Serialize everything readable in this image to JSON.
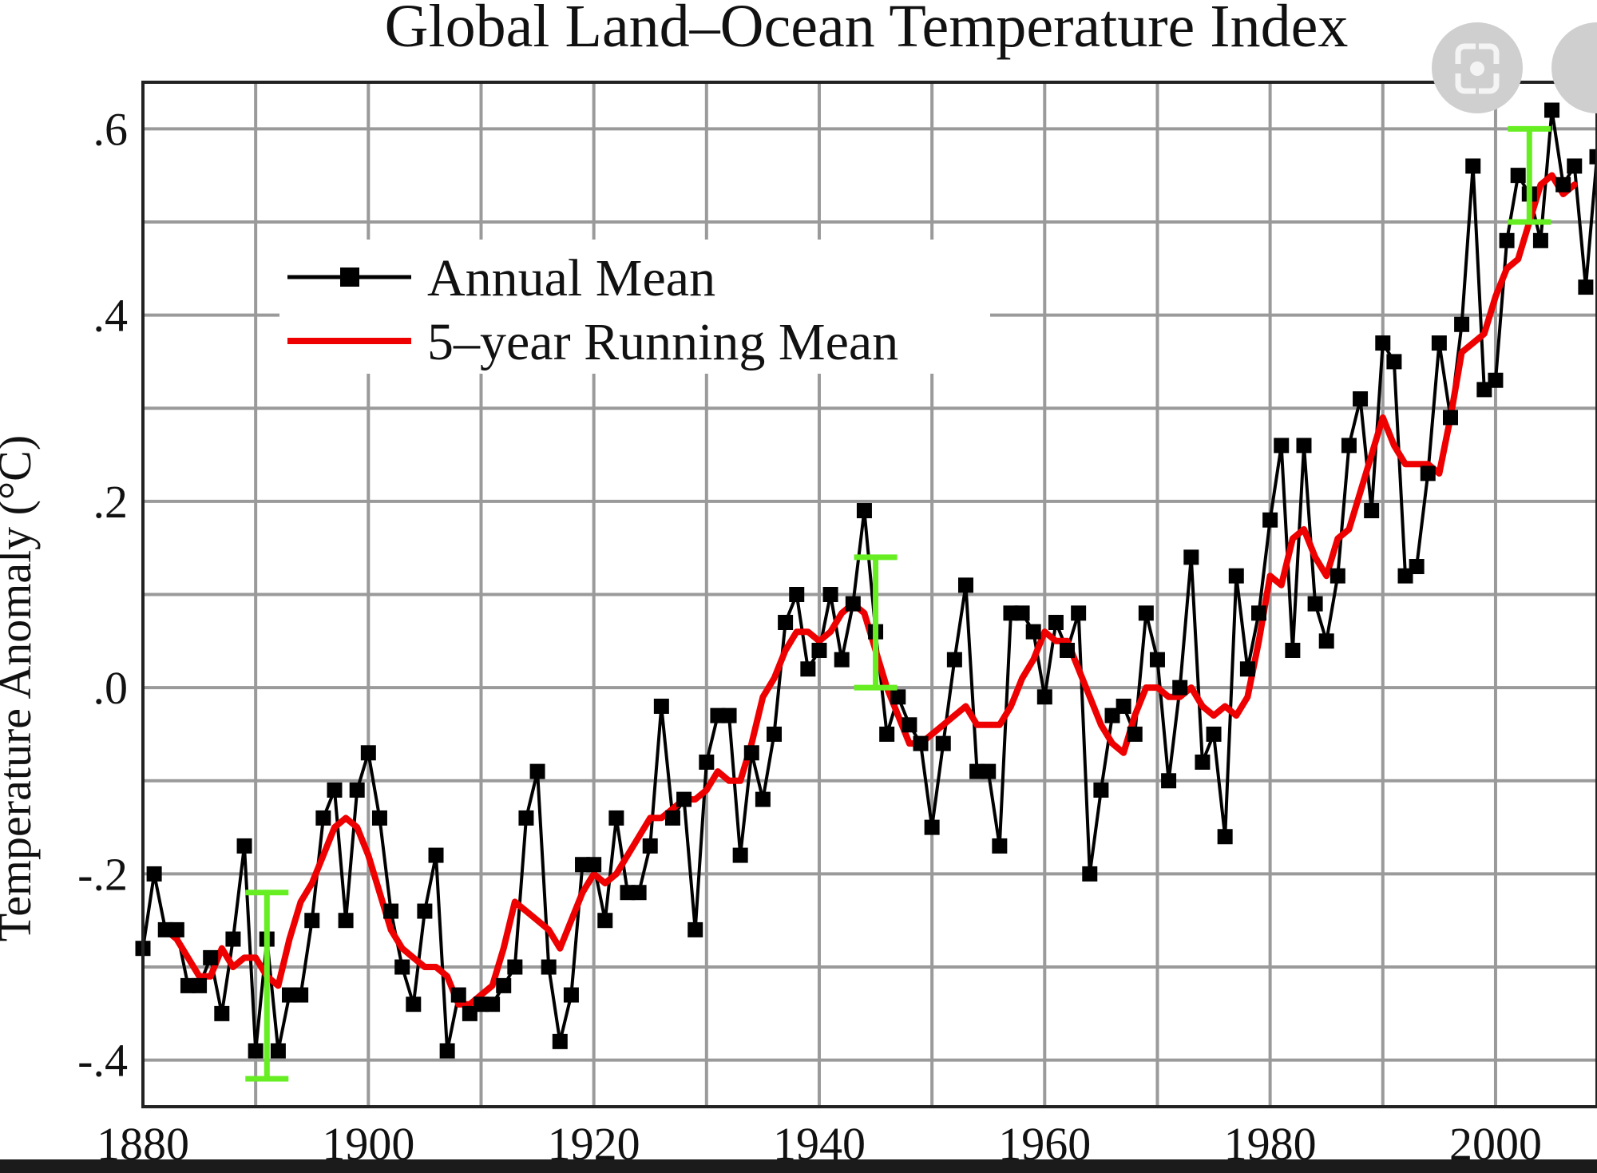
{
  "chart_data": {
    "type": "line",
    "title": "Global Land–Ocean Temperature Index",
    "ylabel": "Temperature Anomaly (°C)",
    "xlabel": "",
    "xlim": [
      1880,
      2009
    ],
    "ylim": [
      -0.45,
      0.65
    ],
    "x_ticks": [
      1880,
      1900,
      1920,
      1940,
      1960,
      1980,
      2000
    ],
    "x_tick_labels": [
      "1880",
      "1900",
      "1920",
      "1940",
      "1960",
      "1980",
      "2000"
    ],
    "y_ticks": [
      -0.4,
      -0.2,
      0.0,
      0.2,
      0.4,
      0.6
    ],
    "y_tick_labels": [
      "-.4",
      "-.2",
      ".0",
      ".2",
      ".4",
      ".6"
    ],
    "grid": true,
    "legend_position": "top-left",
    "series": [
      {
        "name": "Annual Mean",
        "color": "#000000",
        "marker": "square",
        "x": [
          1880,
          1881,
          1882,
          1883,
          1884,
          1885,
          1886,
          1887,
          1888,
          1889,
          1890,
          1891,
          1892,
          1893,
          1894,
          1895,
          1896,
          1897,
          1898,
          1899,
          1900,
          1901,
          1902,
          1903,
          1904,
          1905,
          1906,
          1907,
          1908,
          1909,
          1910,
          1911,
          1912,
          1913,
          1914,
          1915,
          1916,
          1917,
          1918,
          1919,
          1920,
          1921,
          1922,
          1923,
          1924,
          1925,
          1926,
          1927,
          1928,
          1929,
          1930,
          1931,
          1932,
          1933,
          1934,
          1935,
          1936,
          1937,
          1938,
          1939,
          1940,
          1941,
          1942,
          1943,
          1944,
          1945,
          1946,
          1947,
          1948,
          1949,
          1950,
          1951,
          1952,
          1953,
          1954,
          1955,
          1956,
          1957,
          1958,
          1959,
          1960,
          1961,
          1962,
          1963,
          1964,
          1965,
          1966,
          1967,
          1968,
          1969,
          1970,
          1971,
          1972,
          1973,
          1974,
          1975,
          1976,
          1977,
          1978,
          1979,
          1980,
          1981,
          1982,
          1983,
          1984,
          1985,
          1986,
          1987,
          1988,
          1989,
          1990,
          1991,
          1992,
          1993,
          1994,
          1995,
          1996,
          1997,
          1998,
          1999,
          2000,
          2001,
          2002,
          2003,
          2004,
          2005,
          2006,
          2007,
          2008,
          2009
        ],
        "y": [
          -0.28,
          -0.2,
          -0.26,
          -0.26,
          -0.32,
          -0.32,
          -0.29,
          -0.35,
          -0.27,
          -0.17,
          -0.39,
          -0.27,
          -0.39,
          -0.33,
          -0.33,
          -0.25,
          -0.14,
          -0.11,
          -0.25,
          -0.11,
          -0.07,
          -0.14,
          -0.24,
          -0.3,
          -0.34,
          -0.24,
          -0.18,
          -0.39,
          -0.33,
          -0.35,
          -0.34,
          -0.34,
          -0.32,
          -0.3,
          -0.14,
          -0.09,
          -0.3,
          -0.38,
          -0.33,
          -0.19,
          -0.19,
          -0.25,
          -0.14,
          -0.22,
          -0.22,
          -0.17,
          -0.02,
          -0.14,
          -0.12,
          -0.26,
          -0.08,
          -0.03,
          -0.03,
          -0.18,
          -0.07,
          -0.12,
          -0.05,
          0.07,
          0.1,
          0.02,
          0.04,
          0.1,
          0.03,
          0.09,
          0.19,
          0.06,
          -0.05,
          -0.01,
          -0.04,
          -0.06,
          -0.15,
          -0.06,
          0.03,
          0.11,
          -0.09,
          -0.09,
          -0.17,
          0.08,
          0.08,
          0.06,
          -0.01,
          0.07,
          0.04,
          0.08,
          -0.2,
          -0.11,
          -0.03,
          -0.02,
          -0.05,
          0.08,
          0.03,
          -0.1,
          0.0,
          0.14,
          -0.08,
          -0.05,
          -0.16,
          0.12,
          0.02,
          0.08,
          0.18,
          0.26,
          0.04,
          0.26,
          0.09,
          0.05,
          0.12,
          0.26,
          0.31,
          0.19,
          0.37,
          0.35,
          0.12,
          0.13,
          0.23,
          0.37,
          0.29,
          0.39,
          0.56,
          0.32,
          0.33,
          0.48,
          0.55,
          0.53,
          0.48,
          0.62,
          0.54,
          0.56,
          0.43,
          0.57
        ]
      },
      {
        "name": "5–year Running Mean",
        "color": "#ee0000",
        "x": [
          1882,
          1883,
          1884,
          1885,
          1886,
          1887,
          1888,
          1889,
          1890,
          1891,
          1892,
          1893,
          1894,
          1895,
          1896,
          1897,
          1898,
          1899,
          1900,
          1901,
          1902,
          1903,
          1904,
          1905,
          1906,
          1907,
          1908,
          1909,
          1910,
          1911,
          1912,
          1913,
          1914,
          1915,
          1916,
          1917,
          1918,
          1919,
          1920,
          1921,
          1922,
          1923,
          1924,
          1925,
          1926,
          1927,
          1928,
          1929,
          1930,
          1931,
          1932,
          1933,
          1934,
          1935,
          1936,
          1937,
          1938,
          1939,
          1940,
          1941,
          1942,
          1943,
          1944,
          1945,
          1946,
          1947,
          1948,
          1949,
          1950,
          1951,
          1952,
          1953,
          1954,
          1955,
          1956,
          1957,
          1958,
          1959,
          1960,
          1961,
          1962,
          1963,
          1964,
          1965,
          1966,
          1967,
          1968,
          1969,
          1970,
          1971,
          1972,
          1973,
          1974,
          1975,
          1976,
          1977,
          1978,
          1979,
          1980,
          1981,
          1982,
          1983,
          1984,
          1985,
          1986,
          1987,
          1988,
          1989,
          1990,
          1991,
          1992,
          1993,
          1994,
          1995,
          1996,
          1997,
          1998,
          1999,
          2000,
          2001,
          2002,
          2003,
          2004,
          2005,
          2006,
          2007
        ],
        "y": [
          -0.26,
          -0.27,
          -0.29,
          -0.31,
          -0.31,
          -0.28,
          -0.3,
          -0.29,
          -0.29,
          -0.31,
          -0.32,
          -0.27,
          -0.23,
          -0.21,
          -0.18,
          -0.15,
          -0.14,
          -0.15,
          -0.18,
          -0.22,
          -0.26,
          -0.28,
          -0.29,
          -0.3,
          -0.3,
          -0.31,
          -0.34,
          -0.34,
          -0.33,
          -0.32,
          -0.28,
          -0.23,
          -0.24,
          -0.25,
          -0.26,
          -0.28,
          -0.25,
          -0.22,
          -0.2,
          -0.21,
          -0.2,
          -0.18,
          -0.16,
          -0.14,
          -0.14,
          -0.13,
          -0.12,
          -0.12,
          -0.11,
          -0.09,
          -0.1,
          -0.1,
          -0.06,
          -0.01,
          0.01,
          0.04,
          0.06,
          0.06,
          0.05,
          0.06,
          0.08,
          0.09,
          0.08,
          0.04,
          0.0,
          -0.03,
          -0.06,
          -0.06,
          -0.05,
          -0.04,
          -0.03,
          -0.02,
          -0.04,
          -0.04,
          -0.04,
          -0.02,
          0.01,
          0.03,
          0.06,
          0.05,
          0.05,
          0.02,
          -0.01,
          -0.04,
          -0.06,
          -0.07,
          -0.03,
          0.0,
          0.0,
          -0.01,
          -0.01,
          0.0,
          -0.02,
          -0.03,
          -0.02,
          -0.03,
          -0.01,
          0.05,
          0.12,
          0.11,
          0.16,
          0.17,
          0.14,
          0.12,
          0.16,
          0.17,
          0.21,
          0.25,
          0.29,
          0.26,
          0.24,
          0.24,
          0.24,
          0.23,
          0.29,
          0.36,
          0.37,
          0.38,
          0.42,
          0.45,
          0.46,
          0.5,
          0.54,
          0.55,
          0.53,
          0.54
        ]
      }
    ],
    "error_bars": {
      "color": "#66ee22",
      "items": [
        {
          "x": 1891,
          "low": -0.42,
          "high": -0.22
        },
        {
          "x": 1945,
          "low": 0.0,
          "high": 0.14
        },
        {
          "x": 2003,
          "low": 0.5,
          "high": 0.6
        }
      ]
    }
  }
}
